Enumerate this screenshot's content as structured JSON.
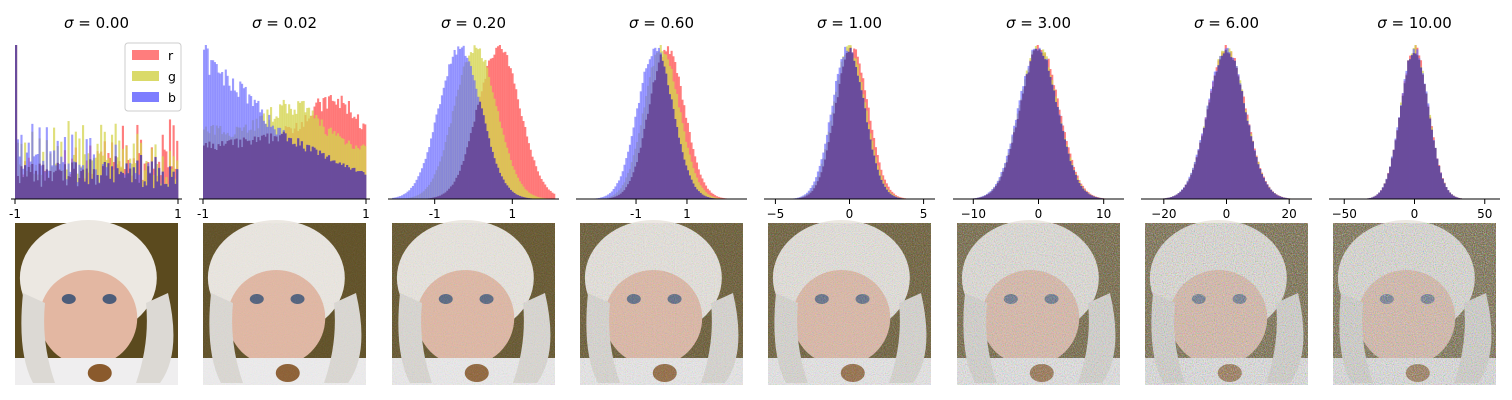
{
  "chart_data": {
    "type": "histogram",
    "description_series": [
      "r",
      "g",
      "b"
    ],
    "colors": {
      "r": "#ff6666",
      "g": "#d4d44f",
      "b": "#6666ff",
      "overlap": "#6a4c9c"
    },
    "legend": {
      "entries": [
        "r",
        "g",
        "b"
      ],
      "placement": "top-right of first panel"
    },
    "panels": [
      {
        "title_prefix": "σ = ",
        "sigma": "0.00",
        "xlim": [
          -1,
          1
        ],
        "ticks": [
          {
            "v": -1,
            "t": "-1"
          },
          {
            "v": 1,
            "t": "1"
          }
        ],
        "kind": "flat",
        "image_caption": "noised image σ=0.00"
      },
      {
        "title_prefix": "σ = ",
        "sigma": "0.02",
        "xlim": [
          -1,
          1
        ],
        "ticks": [
          {
            "v": -1,
            "t": "-1"
          },
          {
            "v": 1,
            "t": "1"
          }
        ],
        "kind": "peaked",
        "image_caption": "noised image σ=0.02"
      },
      {
        "title_prefix": "σ = ",
        "sigma": "0.20",
        "xlim": [
          -2.1,
          2.1
        ],
        "ticks": [
          {
            "v": -1,
            "t": "-1"
          },
          {
            "v": 1,
            "t": "1"
          }
        ],
        "kind": "bell",
        "means": {
          "r": 0.65,
          "g": 0.05,
          "b": -0.35
        },
        "sd": 0.55,
        "image_caption": "noised image σ=0.20"
      },
      {
        "title_prefix": "σ = ",
        "sigma": "0.60",
        "xlim": [
          -3.2,
          3.2
        ],
        "ticks": [
          {
            "v": -1,
            "t": "-1"
          },
          {
            "v": 1,
            "t": "1"
          }
        ],
        "kind": "bell",
        "means": {
          "r": 0.2,
          "g": 0.0,
          "b": -0.25
        },
        "sd": 0.7,
        "image_caption": "noised image σ=0.60"
      },
      {
        "title_prefix": "σ = ",
        "sigma": "1.00",
        "xlim": [
          -5.5,
          5.5
        ],
        "ticks": [
          {
            "v": -5,
            "t": "−5"
          },
          {
            "v": 0,
            "t": "0"
          },
          {
            "v": 5,
            "t": "5"
          }
        ],
        "kind": "bell",
        "means": {
          "r": 0.15,
          "g": 0.0,
          "b": -0.1
        },
        "sd": 1.1,
        "image_caption": "noised image σ=1.00"
      },
      {
        "title_prefix": "σ = ",
        "sigma": "3.00",
        "xlim": [
          -12.5,
          12.5
        ],
        "ticks": [
          {
            "v": -10,
            "t": "−10"
          },
          {
            "v": 0,
            "t": "0"
          },
          {
            "v": 10,
            "t": "10"
          }
        ],
        "kind": "bell",
        "means": {
          "r": 0.15,
          "g": 0.0,
          "b": -0.1
        },
        "sd": 3.0,
        "image_caption": "noised image σ=3.00"
      },
      {
        "title_prefix": "σ = ",
        "sigma": "6.00",
        "xlim": [
          -26,
          26
        ],
        "ticks": [
          {
            "v": -20,
            "t": "−20"
          },
          {
            "v": 0,
            "t": "0"
          },
          {
            "v": 20,
            "t": "20"
          }
        ],
        "kind": "bell",
        "means": {
          "r": 0.1,
          "g": 0.0,
          "b": -0.05
        },
        "sd": 6.0,
        "image_caption": "noised image σ=6.00"
      },
      {
        "title_prefix": "σ = ",
        "sigma": "10.00",
        "xlim": [
          -58,
          58
        ],
        "ticks": [
          {
            "v": -50,
            "t": "−50"
          },
          {
            "v": 0,
            "t": "0"
          },
          {
            "v": 50,
            "t": "50"
          }
        ],
        "kind": "bell",
        "means": {
          "r": 0.1,
          "g": 0.0,
          "b": -0.05
        },
        "sd": 10.0,
        "image_caption": "noised image σ=10.00"
      }
    ]
  }
}
